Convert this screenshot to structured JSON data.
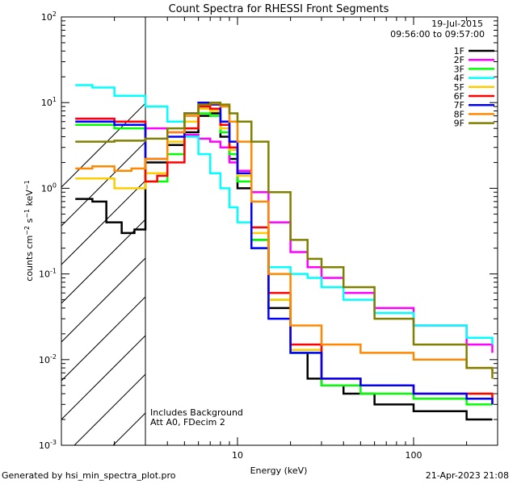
{
  "chart_data": {
    "type": "line",
    "title": "Count Spectra for RHESSI Front Segments",
    "xlabel": "Energy (keV)",
    "ylabel": "counts cm⁻² s⁻¹ keV⁻¹",
    "xscale": "log",
    "yscale": "log",
    "xlim": [
      1,
      300
    ],
    "ylim": [
      0.001,
      100
    ],
    "x_ticks": [
      {
        "v": 10,
        "label": "10"
      },
      {
        "v": 100,
        "label": "100"
      }
    ],
    "y_ticks": [
      {
        "v": 0.001,
        "base": "10",
        "exp": "-3"
      },
      {
        "v": 0.01,
        "base": "10",
        "exp": "-2"
      },
      {
        "v": 0.1,
        "base": "10",
        "exp": "-1"
      },
      {
        "v": 1,
        "base": "10",
        "exp": "0"
      },
      {
        "v": 10,
        "base": "10",
        "exp": "1"
      },
      {
        "v": 100,
        "base": "10",
        "exp": "2"
      }
    ],
    "hatched_below_keV": 3,
    "date": "19-Jul-2015",
    "time_range": "09:56:00 to 09:57:00",
    "annotations": [
      "Includes Background",
      "Att A0, FDecim 2"
    ],
    "series": [
      {
        "name": "1F",
        "color": "#000000",
        "x": [
          1.2,
          1.5,
          1.8,
          2.2,
          2.6,
          3,
          4,
          5,
          6,
          7,
          8,
          9,
          10,
          12,
          15,
          20,
          25,
          30,
          40,
          60,
          100,
          200,
          280
        ],
        "y": [
          0.75,
          0.7,
          0.4,
          0.3,
          0.33,
          2.0,
          3.2,
          4.5,
          7,
          7.5,
          4,
          2.2,
          1.0,
          0.25,
          0.04,
          0.012,
          0.006,
          0.005,
          0.004,
          0.003,
          0.0025,
          0.002,
          0.002
        ]
      },
      {
        "name": "2F",
        "color": "#ff00ff",
        "x": [
          1.2,
          2,
          3,
          4,
          5,
          6,
          7,
          8,
          9,
          10,
          12,
          15,
          20,
          25,
          30,
          40,
          60,
          100,
          200,
          280
        ],
        "y": [
          6.5,
          6.0,
          5.0,
          4.5,
          4.2,
          3.8,
          3.5,
          3.0,
          2.0,
          1.6,
          0.9,
          0.4,
          0.18,
          0.12,
          0.09,
          0.06,
          0.04,
          0.025,
          0.015,
          0.012
        ]
      },
      {
        "name": "3F",
        "color": "#00ff00",
        "x": [
          1.2,
          2,
          3,
          4,
          5,
          6,
          7,
          8,
          9,
          10,
          12,
          15,
          20,
          30,
          50,
          100,
          200,
          280
        ],
        "y": [
          5.5,
          5.0,
          1.2,
          2.5,
          5,
          7.5,
          7.0,
          4.5,
          2.5,
          1.2,
          0.25,
          0.05,
          0.012,
          0.005,
          0.004,
          0.0035,
          0.003,
          0.003
        ]
      },
      {
        "name": "4F",
        "color": "#00ffff",
        "x": [
          1.2,
          1.5,
          2,
          3,
          4,
          5,
          6,
          7,
          8,
          9,
          10,
          12,
          15,
          20,
          25,
          30,
          40,
          60,
          100,
          200,
          280
        ],
        "y": [
          16,
          15,
          12,
          9,
          6,
          4,
          2.5,
          1.5,
          1.0,
          0.6,
          0.4,
          0.2,
          0.12,
          0.1,
          0.09,
          0.07,
          0.05,
          0.035,
          0.025,
          0.018,
          0.015
        ]
      },
      {
        "name": "5F",
        "color": "#ffcc00",
        "x": [
          1.2,
          2,
          2.5,
          3,
          4,
          5,
          6,
          7,
          8,
          9,
          10,
          12,
          15,
          20,
          30,
          50,
          100,
          200,
          280
        ],
        "y": [
          1.3,
          1.0,
          1.0,
          1.5,
          3.5,
          6,
          8.5,
          8.0,
          5,
          2.8,
          1.4,
          0.3,
          0.05,
          0.013,
          0.006,
          0.005,
          0.004,
          0.004,
          0.0035
        ]
      },
      {
        "name": "6F",
        "color": "#ff0000",
        "x": [
          1.2,
          2,
          3,
          3.5,
          4,
          5,
          6,
          7,
          8,
          9,
          10,
          12,
          15,
          20,
          30,
          50,
          100,
          200,
          280
        ],
        "y": [
          6.5,
          6.0,
          1.2,
          1.4,
          2.0,
          5,
          9,
          8.5,
          5.5,
          3,
          1.5,
          0.35,
          0.06,
          0.015,
          0.006,
          0.005,
          0.004,
          0.004,
          0.003
        ]
      },
      {
        "name": "7F",
        "color": "#0000ff",
        "x": [
          1.2,
          2,
          3,
          4,
          5,
          6,
          7,
          8,
          9,
          10,
          12,
          15,
          20,
          30,
          50,
          100,
          200,
          280
        ],
        "y": [
          6.0,
          5.5,
          2.2,
          4,
          7.5,
          10,
          9.5,
          6,
          3.5,
          1.5,
          0.2,
          0.03,
          0.012,
          0.006,
          0.005,
          0.004,
          0.0035,
          0.003
        ]
      },
      {
        "name": "8F",
        "color": "#ff8800",
        "x": [
          1.2,
          1.5,
          2,
          2.5,
          3,
          4,
          5,
          6,
          7,
          8,
          9,
          10,
          12,
          15,
          20,
          30,
          50,
          100,
          200,
          280
        ],
        "y": [
          1.7,
          1.8,
          1.6,
          1.7,
          2.2,
          4.5,
          7,
          9.5,
          9.8,
          9,
          6,
          3.5,
          0.7,
          0.1,
          0.025,
          0.015,
          0.012,
          0.01,
          0.008,
          0.007
        ]
      },
      {
        "name": "9F",
        "color": "#808000",
        "x": [
          1.2,
          2,
          3,
          4,
          5,
          6,
          7,
          8,
          9,
          10,
          12,
          15,
          20,
          25,
          30,
          40,
          60,
          100,
          200,
          280
        ],
        "y": [
          3.5,
          3.6,
          3.8,
          5,
          7.5,
          9.5,
          10,
          9.5,
          7.5,
          6,
          3.5,
          0.9,
          0.25,
          0.15,
          0.12,
          0.07,
          0.03,
          0.015,
          0.008,
          0.006
        ]
      }
    ]
  },
  "footer": {
    "generator": "Generated by hsi_min_spectra_plot.pro",
    "timestamp": "21-Apr-2023 21:08"
  }
}
